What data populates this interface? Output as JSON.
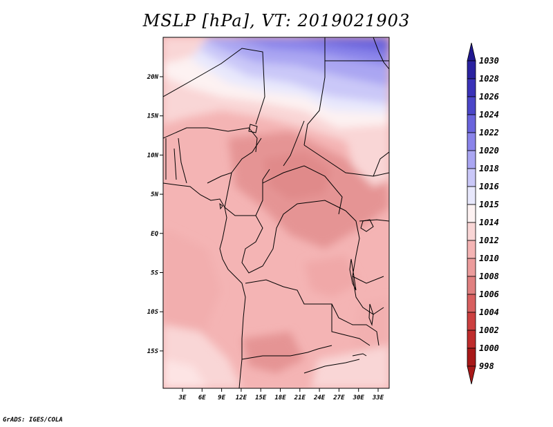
{
  "title": "MSLP [hPa], VT: 2019021903",
  "credit": "GrADS: IGES/COLA",
  "map": {
    "variable": "MSLP",
    "units": "hPa",
    "valid_time": "2019021903",
    "lon_labels": [
      "3E",
      "6E",
      "9E",
      "12E",
      "15E",
      "18E",
      "21E",
      "24E",
      "27E",
      "30E",
      "33E"
    ],
    "lat_labels": [
      "20N",
      "15N",
      "10N",
      "5N",
      "EQ",
      "5S",
      "10S",
      "15S"
    ]
  },
  "colorbar": {
    "levels": [
      {
        "label": "1030",
        "color": "#201890"
      },
      {
        "label": "1028",
        "color": "#2a22a0"
      },
      {
        "label": "1026",
        "color": "#3a32b8"
      },
      {
        "label": "1024",
        "color": "#4b46c8"
      },
      {
        "label": "1022",
        "color": "#6a64dc"
      },
      {
        "label": "1020",
        "color": "#8a84ea"
      },
      {
        "label": "1018",
        "color": "#aaa6f2"
      },
      {
        "label": "1016",
        "color": "#cac8f8"
      },
      {
        "label": "1015",
        "color": "#e8e8fc"
      },
      {
        "label": "1014",
        "color": "#fdf2f2"
      },
      {
        "label": "1012",
        "color": "#f9d6d6"
      },
      {
        "label": "1010",
        "color": "#f4b4b4"
      },
      {
        "label": "1008",
        "color": "#ec9c9c"
      },
      {
        "label": "1006",
        "color": "#e08080"
      },
      {
        "label": "1004",
        "color": "#d86060"
      },
      {
        "label": "1002",
        "color": "#cc4040"
      },
      {
        "label": "1000",
        "color": "#bf2c2c"
      },
      {
        "label": "998",
        "color": "#a81818"
      }
    ]
  }
}
